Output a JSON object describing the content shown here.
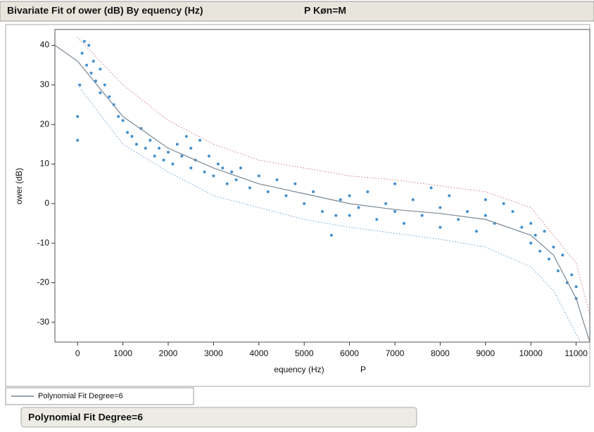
{
  "chart_data": {
    "type": "scatter",
    "title": "Bivariate Fit of ower (dB) By equency (Hz)",
    "subtitle": "P Køn=M",
    "x_label": "equency (Hz)",
    "x_label_note": "P",
    "y_label": "ower (dB)",
    "xlim": [
      -500,
      11300
    ],
    "ylim": [
      -35,
      44
    ],
    "xticks": [
      0,
      1000,
      2000,
      3000,
      4000,
      5000,
      6000,
      7000,
      8000,
      9000,
      10000,
      11000
    ],
    "yticks": [
      -30,
      -20,
      -10,
      0,
      10,
      20,
      30,
      40
    ],
    "points": {
      "color": "#3f8fd0",
      "x": [
        0,
        0,
        50,
        100,
        150,
        200,
        250,
        300,
        350,
        400,
        500,
        500,
        600,
        700,
        800,
        900,
        1000,
        1100,
        1200,
        1300,
        1400,
        1500,
        1600,
        1700,
        1800,
        1900,
        2000,
        2100,
        2200,
        2300,
        2400,
        2500,
        2500,
        2600,
        2700,
        2800,
        2900,
        3000,
        3100,
        3200,
        3300,
        3400,
        3500,
        3600,
        3800,
        4000,
        4200,
        4400,
        4600,
        4800,
        5000,
        5200,
        5400,
        5600,
        5700,
        5800,
        6000,
        6000,
        6200,
        6400,
        6600,
        6800,
        7000,
        7000,
        7200,
        7400,
        7600,
        7800,
        8000,
        8000,
        8200,
        8400,
        8600,
        8800,
        9000,
        9000,
        9200,
        9400,
        9600,
        9800,
        10000,
        10000,
        10100,
        10200,
        10300,
        10400,
        10500,
        10600,
        10700,
        10800,
        10900,
        11000,
        11000
      ],
      "y": [
        16,
        22,
        30,
        38,
        41,
        35,
        40,
        33,
        36,
        31,
        34,
        28,
        30,
        27,
        25,
        22,
        21,
        18,
        17,
        15,
        19,
        14,
        16,
        12,
        14,
        11,
        13,
        10,
        15,
        12,
        17,
        9,
        14,
        11,
        16,
        8,
        12,
        7,
        10,
        9,
        5,
        8,
        6,
        9,
        4,
        7,
        3,
        6,
        2,
        5,
        0,
        3,
        -2,
        -8,
        -3,
        1,
        2,
        -3,
        -1,
        3,
        -4,
        0,
        5,
        -2,
        -5,
        1,
        -3,
        4,
        -1,
        -6,
        2,
        -4,
        -2,
        -7,
        1,
        -3,
        -5,
        0,
        -2,
        -6,
        -5,
        -10,
        -8,
        -12,
        -7,
        -14,
        -11,
        -17,
        -13,
        -20,
        -18,
        -24,
        -21
      ]
    },
    "fit": {
      "name": "Polynomial Fit Degree=6",
      "color": "#7a8794",
      "x": [
        -500,
        0,
        1000,
        2000,
        3000,
        4000,
        5000,
        6000,
        7000,
        8000,
        9000,
        10000,
        10500,
        11000,
        11300
      ],
      "y": [
        40,
        36,
        22,
        14,
        9,
        5,
        2.5,
        0,
        -1.5,
        -2.5,
        -4,
        -8,
        -13,
        -24,
        -35
      ]
    },
    "fit_upper": {
      "color": "#d07a7a",
      "x": [
        0,
        1000,
        2000,
        3000,
        4000,
        5000,
        6000,
        7000,
        8000,
        9000,
        10000,
        11000,
        11300
      ],
      "y": [
        42,
        30,
        21,
        15,
        11,
        9,
        7,
        6,
        4.5,
        3,
        -1,
        -15,
        -28
      ]
    },
    "fit_lower": {
      "color": "#6a9fd0",
      "x": [
        0,
        1000,
        2000,
        3000,
        4000,
        5000,
        6000,
        7000,
        8000,
        9000,
        10000,
        10500,
        11000,
        11100
      ],
      "y": [
        30,
        15,
        8,
        2,
        -1,
        -4,
        -6,
        -7.5,
        -9,
        -11,
        -16,
        -22,
        -33,
        -35
      ]
    },
    "report_title": "Polynomial Fit Degree=6"
  }
}
